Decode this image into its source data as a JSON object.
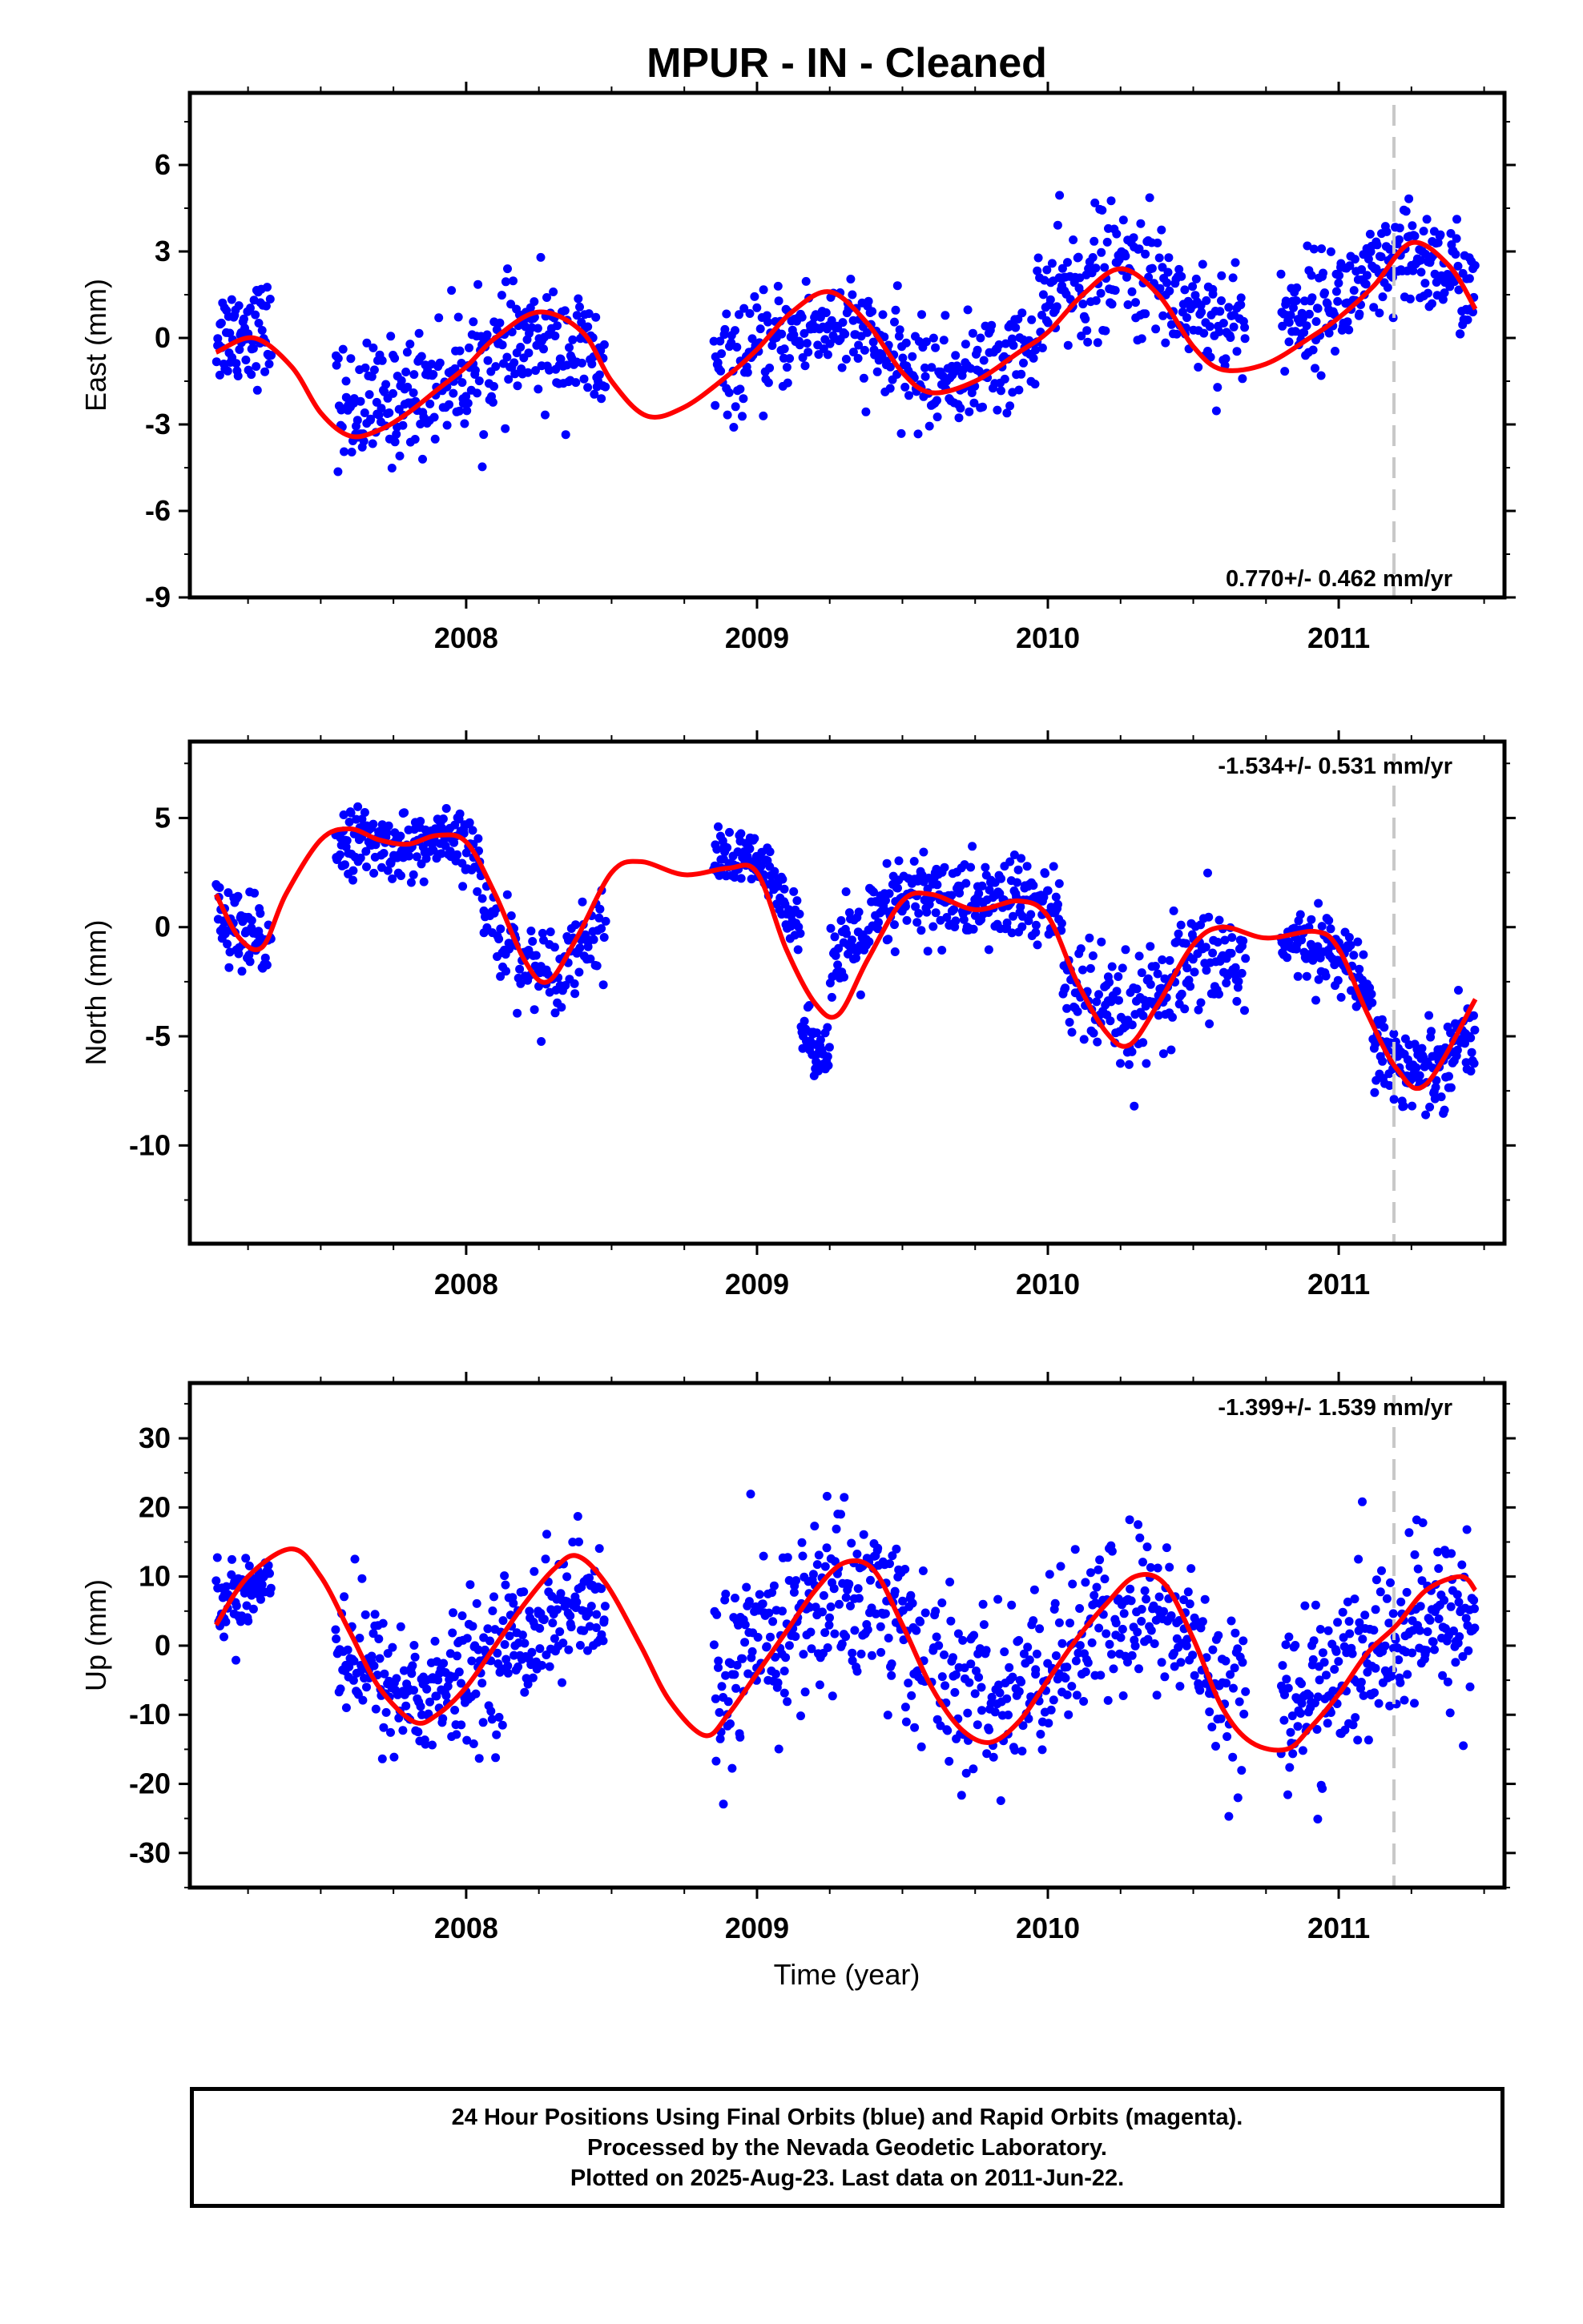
{
  "chart_data": {
    "title": "MPUR  - IN - Cleaned",
    "xlabel": "Time (year)",
    "type": "scatter",
    "xlim": [
      2007.05,
      2011.57
    ],
    "xticks": [
      "2008",
      "2009",
      "2010",
      "2011"
    ],
    "marker_color": "#0000ff",
    "model_color": "#ff0000",
    "event_line_x": 2011.19,
    "panels": [
      {
        "id": "east",
        "ylabel": "East (mm)",
        "ylim": [
          -9,
          8.5
        ],
        "yticks": [
          "-9",
          "-6",
          "-3",
          "0",
          "3",
          "6"
        ],
        "rate_label": "0.770+/- 0.462 mm/yr",
        "rate_position": "bottom-right",
        "model": {
          "x": [
            2007.14,
            2007.27,
            2007.4,
            2007.5,
            2007.6,
            2007.7,
            2007.8,
            2007.9,
            2008.0,
            2008.1,
            2008.25,
            2008.4,
            2008.5,
            2008.62,
            2008.75,
            2008.9,
            2009.0,
            2009.12,
            2009.25,
            2009.38,
            2009.5,
            2009.6,
            2009.75,
            2009.9,
            2010.0,
            2010.12,
            2010.25,
            2010.38,
            2010.5,
            2010.6,
            2010.75,
            2010.9,
            2011.0,
            2011.12,
            2011.25,
            2011.38,
            2011.47
          ],
          "y": [
            -0.5,
            0.0,
            -1.0,
            -2.6,
            -3.4,
            -3.2,
            -2.6,
            -1.8,
            -1.0,
            0.0,
            0.9,
            0.2,
            -1.5,
            -2.7,
            -2.4,
            -1.3,
            -0.4,
            0.9,
            1.6,
            0.5,
            -1.2,
            -1.9,
            -1.5,
            -0.5,
            0.2,
            1.5,
            2.4,
            1.5,
            -0.3,
            -1.1,
            -0.9,
            0.0,
            0.7,
            1.8,
            3.3,
            2.5,
            1.0
          ]
        },
        "series": [
          {
            "name": "",
            "segments": [
              {
                "x0": 2007.14,
                "x1": 2007.33,
                "center": 0.8,
                "noise": 1.6,
                "n": 70
              },
              {
                "x0": 2007.55,
                "x1": 2008.48,
                "center": -1.3,
                "noise": 1.9,
                "n": 300
              },
              {
                "x0": 2008.85,
                "x1": 2009.95,
                "center": -0.8,
                "noise": 1.6,
                "n": 320
              },
              {
                "x0": 2009.95,
                "x1": 2010.68,
                "center": 2.5,
                "noise": 2.0,
                "n": 220
              },
              {
                "x0": 2010.8,
                "x1": 2011.47,
                "center": 2.2,
                "noise": 1.7,
                "n": 230
              }
            ]
          }
        ]
      },
      {
        "id": "north",
        "ylabel": "North (mm)",
        "ylim": [
          -14.5,
          8.5
        ],
        "yticks": [
          "-10",
          "-5",
          "0",
          "5"
        ],
        "rate_label": "-1.534+/- 0.531 mm/yr",
        "rate_position": "top-right",
        "model": {
          "x": [
            2007.14,
            2007.22,
            2007.3,
            2007.38,
            2007.5,
            2007.6,
            2007.7,
            2007.8,
            2007.9,
            2008.0,
            2008.1,
            2008.2,
            2008.28,
            2008.38,
            2008.5,
            2008.6,
            2008.75,
            2008.9,
            2009.0,
            2009.1,
            2009.2,
            2009.28,
            2009.38,
            2009.5,
            2009.6,
            2009.75,
            2009.9,
            2010.0,
            2010.1,
            2010.2,
            2010.28,
            2010.38,
            2010.5,
            2010.6,
            2010.75,
            2010.92,
            2011.0,
            2011.1,
            2011.2,
            2011.3,
            2011.47
          ],
          "y": [
            1.5,
            -0.5,
            -0.9,
            1.5,
            4.0,
            4.5,
            4.0,
            3.8,
            4.2,
            3.9,
            1.5,
            -1.5,
            -2.5,
            -0.5,
            2.5,
            3.0,
            2.4,
            2.7,
            2.5,
            -1.0,
            -3.5,
            -4.0,
            -1.5,
            1.2,
            1.5,
            0.8,
            1.2,
            0.5,
            -2.5,
            -4.8,
            -5.4,
            -3.5,
            -0.8,
            0.0,
            -0.5,
            -0.2,
            -1.0,
            -4.0,
            -6.5,
            -7.2,
            -3.3
          ]
        },
        "series": [
          {
            "name": "",
            "segments": [
              {
                "x0": 2007.14,
                "x1": 2007.33,
                "center": -0.6,
                "noise": 1.8,
                "n": 70
              },
              {
                "x0": 2007.55,
                "x1": 2008.05,
                "center": 3.5,
                "noise": 1.3,
                "n": 180
              },
              {
                "x0": 2008.05,
                "x1": 2008.48,
                "center": -1.6,
                "noise": 1.8,
                "n": 120
              },
              {
                "x0": 2008.85,
                "x1": 2009.15,
                "center": 3.6,
                "noise": 1.2,
                "n": 110
              },
              {
                "x0": 2009.15,
                "x1": 2009.25,
                "center": -7.8,
                "noise": 1.1,
                "n": 40
              },
              {
                "x0": 2009.25,
                "x1": 2010.05,
                "center": 1.4,
                "noise": 1.9,
                "n": 280
              },
              {
                "x0": 2010.05,
                "x1": 2010.68,
                "center": -3.2,
                "noise": 2.4,
                "n": 200
              },
              {
                "x0": 2010.8,
                "x1": 2011.12,
                "center": -1.5,
                "noise": 1.4,
                "n": 110
              },
              {
                "x0": 2011.12,
                "x1": 2011.47,
                "center": -6.0,
                "noise": 1.8,
                "n": 130
              }
            ]
          }
        ]
      },
      {
        "id": "up",
        "ylabel": "Up (mm)",
        "ylim": [
          -35,
          38
        ],
        "yticks": [
          "-30",
          "-20",
          "-10",
          "0",
          "10",
          "20",
          "30"
        ],
        "rate_label": "-1.399+/- 1.539 mm/yr",
        "rate_position": "top-right",
        "model": {
          "x": [
            2007.14,
            2007.25,
            2007.4,
            2007.5,
            2007.6,
            2007.7,
            2007.82,
            2007.9,
            2008.0,
            2008.1,
            2008.2,
            2008.3,
            2008.38,
            2008.48,
            2008.6,
            2008.7,
            2008.82,
            2008.9,
            2009.0,
            2009.1,
            2009.2,
            2009.3,
            2009.4,
            2009.5,
            2009.6,
            2009.7,
            2009.8,
            2009.9,
            2010.0,
            2010.1,
            2010.2,
            2010.3,
            2010.4,
            2010.5,
            2010.6,
            2010.7,
            2010.82,
            2010.9,
            2011.0,
            2011.1,
            2011.2,
            2011.3,
            2011.42,
            2011.47
          ],
          "y": [
            3,
            10,
            14,
            10,
            2,
            -6,
            -11,
            -10,
            -6,
            0,
            6,
            11,
            13,
            9,
            0,
            -8,
            -13,
            -10,
            -4,
            2,
            8,
            12,
            11,
            3,
            -6,
            -12,
            -14,
            -11,
            -5,
            1,
            6,
            10,
            9,
            1,
            -9,
            -14,
            -15,
            -12,
            -7,
            -1,
            3,
            8,
            10,
            8
          ]
        },
        "series": [
          {
            "name": "",
            "segments": [
              {
                "x0": 2007.14,
                "x1": 2007.33,
                "center": 7,
                "noise": 5,
                "n": 70
              },
              {
                "x0": 2007.55,
                "x1": 2008.48,
                "center": -3,
                "noise": 9,
                "n": 320
              },
              {
                "x0": 2008.85,
                "x1": 2009.58,
                "center": 3,
                "noise": 12,
                "n": 260
              },
              {
                "x0": 2009.6,
                "x1": 2010.68,
                "center": -1,
                "noise": 11,
                "n": 320
              },
              {
                "x0": 2010.8,
                "x1": 2011.47,
                "center": -2,
                "noise": 11,
                "n": 240
              }
            ]
          }
        ]
      }
    ]
  },
  "caption": {
    "line1": "24 Hour Positions Using Final Orbits (blue) and Rapid Orbits (magenta).",
    "line2": "Processed by the Nevada Geodetic Laboratory.",
    "line3": "Plotted on 2025-Aug-23. Last data on 2011-Jun-22."
  }
}
